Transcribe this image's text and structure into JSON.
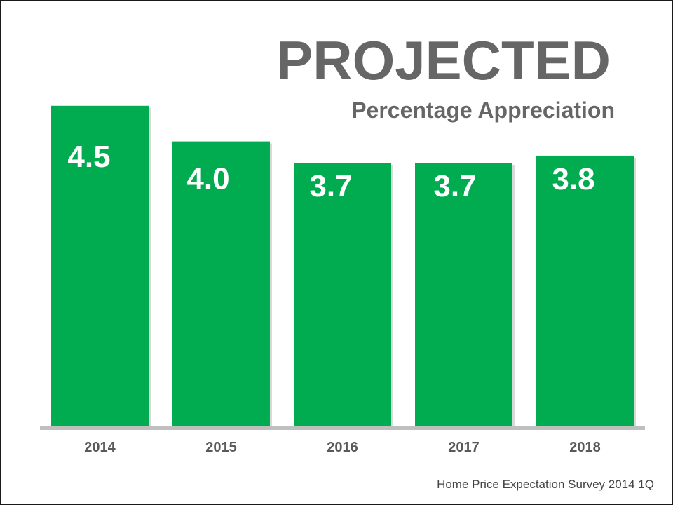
{
  "title": "PROJECTED",
  "subtitle": "Percentage Appreciation",
  "source": "Home Price Expectation Survey 2014 1Q",
  "colors": {
    "bar": "#00AC4F",
    "bar_shadow": "#bfbfbf",
    "baseline": "#bfbfbf",
    "value_label": "#ffffff",
    "tick_label": "#595959",
    "title": "#666666"
  },
  "chart_data": {
    "type": "bar",
    "categories": [
      "2014",
      "2015",
      "2016",
      "2017",
      "2018"
    ],
    "values": [
      4.5,
      4.0,
      3.7,
      3.7,
      3.8
    ],
    "value_labels": [
      "4.5",
      "4.0",
      "3.7",
      "3.7",
      "3.8"
    ],
    "title": "PROJECTED",
    "subtitle": "Percentage Appreciation",
    "xlabel": "",
    "ylabel": "",
    "grid": false,
    "legend": "none"
  }
}
